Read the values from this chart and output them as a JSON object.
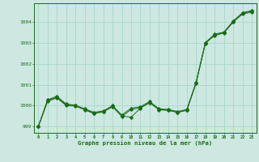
{
  "xlabel": "Graphe pression niveau de la mer (hPa)",
  "background_color": "#cce8e0",
  "grid_color": "#aad4cc",
  "line_color": "#1a6b1a",
  "x_ticks": [
    0,
    1,
    2,
    3,
    4,
    5,
    6,
    7,
    8,
    9,
    10,
    11,
    12,
    13,
    14,
    15,
    16,
    17,
    18,
    19,
    20,
    21,
    22,
    23
  ],
  "ylim": [
    998.7,
    1004.9
  ],
  "yticks": [
    999,
    1000,
    1001,
    1002,
    1003,
    1004
  ],
  "series1": [
    999.0,
    1000.25,
    1000.4,
    1000.05,
    1000.0,
    999.8,
    999.62,
    999.7,
    999.95,
    999.5,
    999.45,
    999.88,
    1000.15,
    999.82,
    999.78,
    999.68,
    999.78,
    1001.1,
    1003.0,
    1003.35,
    1003.48,
    1004.0,
    1004.38,
    1004.48
  ],
  "series2": [
    999.0,
    1000.2,
    1000.38,
    1000.0,
    999.98,
    999.82,
    999.64,
    999.72,
    999.97,
    999.48,
    999.82,
    999.9,
    1000.15,
    999.8,
    999.78,
    999.68,
    999.78,
    1001.08,
    1002.98,
    1003.38,
    1003.5,
    1004.02,
    1004.42,
    1004.52
  ],
  "series3": [
    999.0,
    1000.28,
    1000.45,
    1000.08,
    1000.02,
    999.85,
    999.68,
    999.75,
    1000.0,
    999.55,
    999.88,
    999.95,
    1000.2,
    999.85,
    999.82,
    999.72,
    999.82,
    1001.12,
    1003.02,
    1003.42,
    1003.52,
    1004.05,
    1004.45,
    1004.55
  ]
}
